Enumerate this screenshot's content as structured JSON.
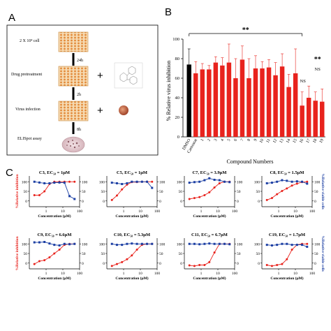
{
  "panels": {
    "a": "A",
    "b": "B",
    "c": "C"
  },
  "workflow": {
    "steps": [
      "2 X 10⁴ cell",
      "Drug pretreatment",
      "Virus infection",
      "ELISpot assay"
    ],
    "durations": [
      "24h",
      "2h",
      "8h"
    ],
    "plus": "+"
  },
  "chart_data": [
    {
      "type": "bar",
      "categories": [
        "DMSO",
        "Camostat",
        "1",
        "2",
        "3",
        "4",
        "5",
        "6",
        "7",
        "8",
        "9",
        "10",
        "11",
        "12",
        "13",
        "14",
        "15",
        "16",
        "17",
        "18",
        "19"
      ],
      "values": [
        74,
        65,
        69,
        69,
        76,
        73,
        76,
        60,
        79,
        60,
        70,
        70,
        71,
        63,
        72,
        51,
        65,
        32,
        40,
        37,
        36
      ],
      "errors": [
        16,
        12,
        6,
        4,
        6,
        8,
        19,
        20,
        14,
        20,
        13,
        7,
        8,
        13,
        13,
        13,
        25,
        14,
        12,
        9,
        13
      ],
      "bar_colors": {
        "DMSO": "#000000",
        "default": "#e8231d"
      },
      "ylabel": "% Relative virus inhibition",
      "xlabel": "Compound Numbers",
      "ylim": [
        0,
        100
      ],
      "yticks": [
        0,
        20,
        40,
        60,
        80,
        100
      ],
      "annotations": {
        "bracket": "**",
        "right": "**",
        "ns1": "NS",
        "ns2": "NS"
      }
    },
    {
      "type": "line",
      "xlabel": "Concentration (μM)",
      "ylabel_left": "%Relative inhibition",
      "ylabel_right": "%Relative viable cells",
      "xscale": "log",
      "xticks": [
        1,
        10,
        100
      ],
      "xtick_labels": [
        "1",
        "10",
        "100"
      ],
      "ylim": [
        0,
        100
      ],
      "yticks_left": [
        0,
        50,
        100
      ],
      "yticks_right": [
        0,
        50,
        100
      ],
      "x": [
        0.2,
        0.4,
        0.8,
        1.6,
        3.1,
        6.25,
        12.5,
        25,
        50
      ],
      "plots": [
        {
          "title": "C3, EC₅₀ = 1μM",
          "inhibition": [
            30,
            30,
            50,
            88,
            100,
            100,
            100,
            100,
            100
          ],
          "viability": [
            100,
            96,
            92,
            92,
            95,
            96,
            95,
            25,
            10
          ]
        },
        {
          "title": "C5, EC₅₀ = 1μM",
          "inhibition": [
            5,
            28,
            60,
            85,
            98,
            98,
            100,
            100,
            100
          ],
          "viability": [
            95,
            92,
            88,
            92,
            100,
            100,
            100,
            100,
            68
          ]
        },
        {
          "title": "C7, EC₅₀ = 3.9μM",
          "inhibition": [
            10,
            15,
            20,
            30,
            45,
            70,
            92,
            100,
            100
          ],
          "viability": [
            95,
            98,
            100,
            108,
            118,
            110,
            108,
            100,
            98
          ]
        },
        {
          "title": "C8, EC₅₀ = 1.5μM",
          "inhibition": [
            5,
            15,
            35,
            52,
            65,
            80,
            90,
            98,
            100
          ],
          "viability": [
            92,
            95,
            100,
            108,
            105,
            100,
            102,
            100,
            90
          ]
        },
        {
          "title": "C9, EC₅₀ = 6.6μM",
          "inhibition": [
            -5,
            10,
            15,
            30,
            50,
            70,
            95,
            100,
            100
          ],
          "viability": [
            108,
            108,
            110,
            102,
            95,
            92,
            100,
            98,
            100
          ]
        },
        {
          "title": "C10, EC₅₀ = 5.3μM",
          "inhibition": [
            -15,
            -5,
            5,
            20,
            40,
            70,
            95,
            100,
            100
          ],
          "viability": [
            100,
            95,
            95,
            100,
            102,
            100,
            100,
            100,
            100
          ]
        },
        {
          "title": "C11, EC₅₀ = 6.7μM",
          "inhibition": [
            -12,
            -15,
            -10,
            -10,
            5,
            55,
            100,
            100,
            100
          ],
          "viability": [
            100,
            100,
            98,
            100,
            102,
            100,
            100,
            100,
            98
          ]
        },
        {
          "title": "C19, EC₅₀ = 1.7μM",
          "inhibition": [
            -10,
            -15,
            -10,
            -5,
            20,
            70,
            95,
            100,
            100
          ],
          "viability": [
            95,
            92,
            95,
            100,
            100,
            95,
            95,
            95,
            85
          ]
        }
      ]
    }
  ],
  "colors": {
    "red": "#e8231d",
    "blue": "#1c3fa3",
    "axis": "#000000"
  }
}
